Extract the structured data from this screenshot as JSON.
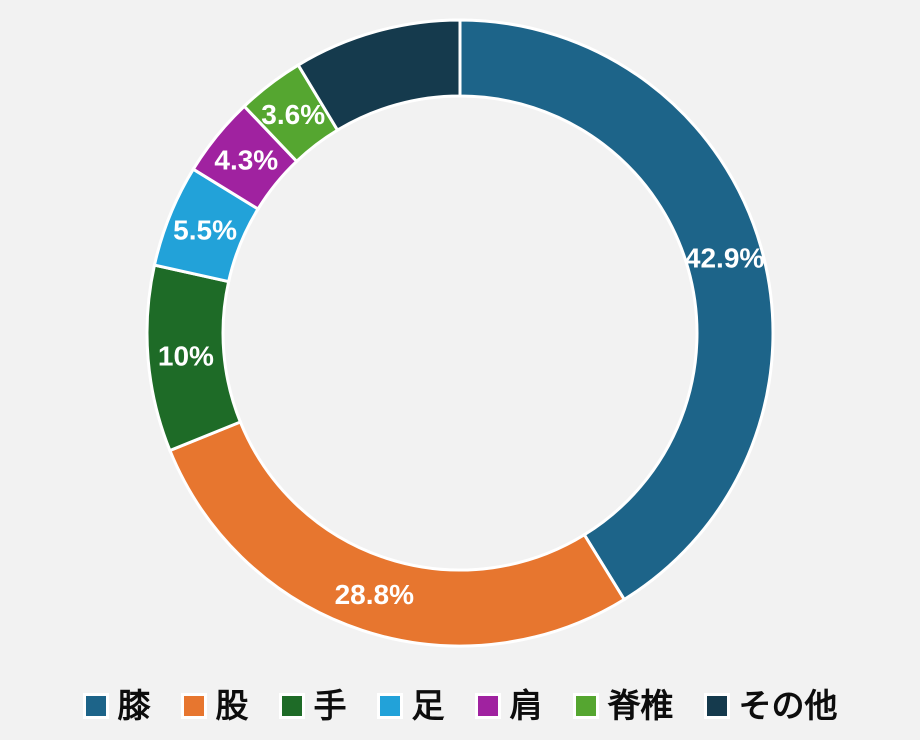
{
  "chart_data": {
    "type": "donut",
    "title": "",
    "legend_position": "bottom",
    "start_angle": "top",
    "direction": "clockwise",
    "background_color": "#f2f2f2",
    "separator_color": "#ffffff",
    "label_text_color": "#ffffff",
    "legend_text_color": "#0d0d0d",
    "series": [
      {
        "key": "knee",
        "label": "膝",
        "value": 42.9,
        "display": "42.9%",
        "color": "#1d6489"
      },
      {
        "key": "hip",
        "label": "股",
        "value": 28.8,
        "display": "28.8%",
        "color": "#e7762f"
      },
      {
        "key": "hand",
        "label": "手",
        "value": 10,
        "display": "10%",
        "color": "#1e6b27"
      },
      {
        "key": "foot",
        "label": "足",
        "value": 5.5,
        "display": "5.5%",
        "color": "#22a2d9"
      },
      {
        "key": "shoulder",
        "label": "肩",
        "value": 4.3,
        "display": "4.3%",
        "color": "#a022a0"
      },
      {
        "key": "spine",
        "label": "脊椎",
        "value": 3.6,
        "display": "3.6%",
        "color": "#55a630"
      },
      {
        "key": "other",
        "label": "その他",
        "value": 9.0,
        "display": "",
        "color": "#153a4d"
      }
    ]
  }
}
